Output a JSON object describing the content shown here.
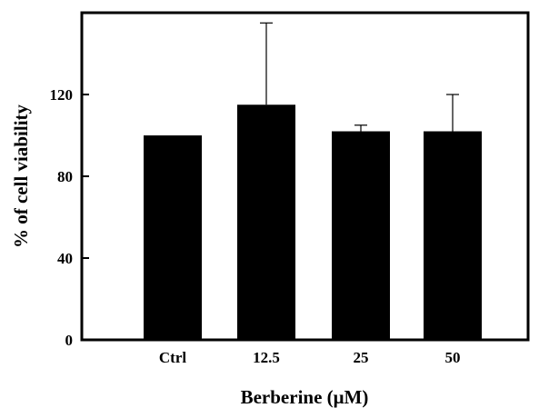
{
  "chart_data": {
    "type": "bar",
    "title": "",
    "xlabel": "Berberine (μM)",
    "ylabel": "% of cell viability",
    "categories": [
      "Ctrl",
      "12.5",
      "25",
      "50"
    ],
    "values": [
      100,
      115,
      102,
      102
    ],
    "error_upper": [
      0,
      40,
      3,
      18
    ],
    "yticks": [
      "0",
      "40",
      "80",
      "120"
    ],
    "ylim": [
      0,
      160
    ],
    "grid": false,
    "legend": "none",
    "bar_color": "#000000"
  }
}
